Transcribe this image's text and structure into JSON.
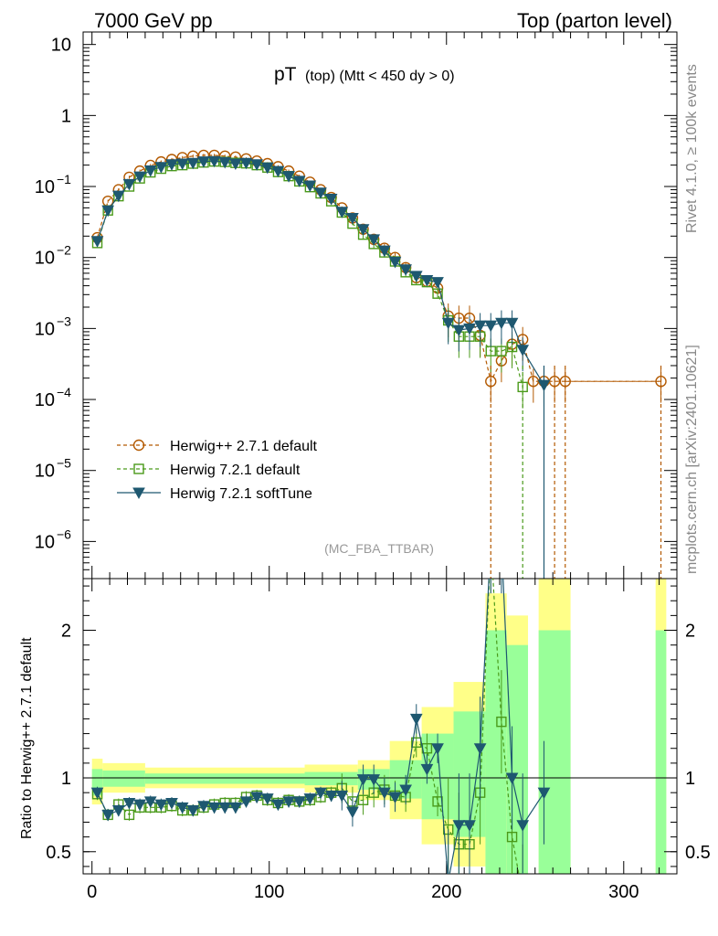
{
  "header": {
    "left": "7000 GeV pp",
    "right": "Top (parton level)"
  },
  "side_labels": {
    "rivet": "Rivet 4.1.0, ≥ 100k events",
    "mcplots": "mcplots.cern.ch [arXiv:2401.10621]"
  },
  "plot_title": {
    "main": "pT",
    "sub": "(top) (Mtt < 450 dy > 0)"
  },
  "analysis_label": "(MC_FBA_TTBAR)",
  "ratio_ylabel": "Ratio to Herwig++ 2.7.1 default",
  "colors": {
    "herwigpp": "#b35900",
    "herwig721": "#4a9a1a",
    "softtune": "#1e5870",
    "band_yellow": "#ffff88",
    "band_green": "#99ff99"
  },
  "chart_data": [
    {
      "type": "line",
      "name": "main-panel",
      "title": "pT (top) (Mtt < 450 dy > 0)",
      "yscale": "log",
      "ylim": [
        3e-07,
        15
      ],
      "xlim": [
        -5,
        330
      ],
      "yticks": [
        {
          "v": 1e-06,
          "base": "10",
          "exp": "−6"
        },
        {
          "v": 1e-05,
          "base": "10",
          "exp": "−5"
        },
        {
          "v": 0.0001,
          "base": "10",
          "exp": "−4"
        },
        {
          "v": 0.001,
          "base": "10",
          "exp": "−3"
        },
        {
          "v": 0.01,
          "base": "10",
          "exp": "−2"
        },
        {
          "v": 0.1,
          "base": "10",
          "exp": "−1"
        },
        {
          "v": 1,
          "base": "1",
          "exp": ""
        },
        {
          "v": 10,
          "base": "10",
          "exp": ""
        }
      ],
      "legend": [
        "Herwig++ 2.7.1 default",
        "Herwig 7.2.1 default",
        "Herwig 7.2.1 softTune"
      ],
      "legend_position": "bottom-left",
      "series": [
        {
          "name": "Herwig++ 2.7.1 default",
          "marker": "circle",
          "x": [
            3,
            9,
            15,
            21,
            27,
            33,
            39,
            45,
            51,
            57,
            63,
            69,
            75,
            81,
            87,
            93,
            99,
            105,
            111,
            117,
            123,
            129,
            135,
            141,
            147,
            153,
            159,
            165,
            171,
            177,
            183,
            189,
            195,
            201,
            207,
            213,
            219,
            225,
            231,
            237,
            243,
            249,
            255,
            261,
            267,
            321
          ],
          "y": [
            0.019,
            0.062,
            0.09,
            0.135,
            0.165,
            0.198,
            0.222,
            0.24,
            0.255,
            0.268,
            0.275,
            0.275,
            0.268,
            0.26,
            0.245,
            0.228,
            0.21,
            0.19,
            0.165,
            0.14,
            0.115,
            0.09,
            0.07,
            0.05,
            0.036,
            0.025,
            0.018,
            0.0135,
            0.01,
            0.0072,
            0.0052,
            0.0046,
            0.0037,
            0.0015,
            0.0014,
            0.0014,
            0.0008,
            0.00018,
            0.00035,
            0.0006,
            0.0007,
            0.00018,
            0.00018,
            0.00018,
            0.00018,
            0.00018
          ]
        },
        {
          "name": "Herwig 7.2.1 default",
          "marker": "square",
          "x": [
            3,
            9,
            15,
            21,
            27,
            33,
            39,
            45,
            51,
            57,
            63,
            69,
            75,
            81,
            87,
            93,
            99,
            105,
            111,
            117,
            123,
            129,
            135,
            141,
            147,
            153,
            159,
            165,
            171,
            177,
            183,
            189,
            195,
            201,
            207,
            213,
            219,
            225,
            231,
            237,
            243
          ],
          "y": [
            0.016,
            0.046,
            0.073,
            0.1,
            0.13,
            0.158,
            0.178,
            0.194,
            0.2,
            0.21,
            0.218,
            0.225,
            0.222,
            0.215,
            0.212,
            0.2,
            0.185,
            0.16,
            0.14,
            0.118,
            0.098,
            0.08,
            0.062,
            0.043,
            0.03,
            0.021,
            0.0155,
            0.0118,
            0.0088,
            0.0062,
            0.0048,
            0.0045,
            0.0031,
            0.0013,
            0.00077,
            0.00077,
            0.00077,
            0.00048,
            0.00048,
            0.00055,
            0.00015
          ]
        },
        {
          "name": "Herwig 7.2.1 softTune",
          "marker": "triangle-down",
          "x": [
            3,
            9,
            15,
            21,
            27,
            33,
            39,
            45,
            51,
            57,
            63,
            69,
            75,
            81,
            87,
            93,
            99,
            105,
            111,
            117,
            123,
            129,
            135,
            141,
            147,
            153,
            159,
            165,
            171,
            177,
            183,
            189,
            195,
            201,
            207,
            213,
            219,
            225,
            231,
            237,
            243,
            255
          ],
          "y": [
            0.017,
            0.046,
            0.074,
            0.108,
            0.138,
            0.168,
            0.188,
            0.205,
            0.21,
            0.215,
            0.225,
            0.228,
            0.22,
            0.21,
            0.215,
            0.205,
            0.185,
            0.165,
            0.14,
            0.12,
            0.103,
            0.082,
            0.067,
            0.044,
            0.036,
            0.025,
            0.018,
            0.0125,
            0.0087,
            0.0068,
            0.0055,
            0.0048,
            0.0045,
            0.0012,
            0.00095,
            0.001,
            0.0011,
            0.0011,
            0.0012,
            0.0012,
            0.0005,
            0.00016
          ]
        }
      ]
    },
    {
      "type": "line",
      "name": "ratio-panel",
      "ylabel": "Ratio to Herwig++ 2.7.1 default",
      "ylim": [
        0.35,
        2.35
      ],
      "xlim": [
        -5,
        330
      ],
      "xticks": [
        0,
        100,
        200,
        300
      ],
      "yticks": [
        0.5,
        1,
        2
      ],
      "bands": [
        {
          "x0": 0,
          "x1": 6,
          "y_lo": 0.82,
          "y_hi": 1.13,
          "g_lo": 0.88,
          "g_hi": 1.06
        },
        {
          "x0": 6,
          "x1": 30,
          "y_lo": 0.9,
          "y_hi": 1.1,
          "g_lo": 0.94,
          "g_hi": 1.05
        },
        {
          "x0": 30,
          "x1": 120,
          "y_lo": 0.93,
          "y_hi": 1.07,
          "g_lo": 0.96,
          "g_hi": 1.03
        },
        {
          "x0": 120,
          "x1": 150,
          "y_lo": 0.9,
          "y_hi": 1.09,
          "g_lo": 0.95,
          "g_hi": 1.04
        },
        {
          "x0": 150,
          "x1": 168,
          "y_lo": 0.85,
          "y_hi": 1.12,
          "g_lo": 0.92,
          "g_hi": 1.06
        },
        {
          "x0": 168,
          "x1": 186,
          "y_lo": 0.72,
          "y_hi": 1.25,
          "g_lo": 0.86,
          "g_hi": 1.12
        },
        {
          "x0": 186,
          "x1": 204,
          "y_lo": 0.55,
          "y_hi": 1.48,
          "g_lo": 0.72,
          "g_hi": 1.3
        },
        {
          "x0": 204,
          "x1": 222,
          "y_lo": 0.4,
          "y_hi": 1.65,
          "g_lo": 0.6,
          "g_hi": 1.45
        },
        {
          "x0": 222,
          "x1": 234,
          "y_lo": 0.35,
          "y_hi": 2.25,
          "g_lo": 0.35,
          "g_hi": 2.0
        },
        {
          "x0": 234,
          "x1": 246,
          "y_lo": 0.35,
          "y_hi": 2.1,
          "g_lo": 0.35,
          "g_hi": 1.9
        },
        {
          "x0": 252,
          "x1": 270,
          "y_lo": 0.35,
          "y_hi": 2.35,
          "g_lo": 0.35,
          "g_hi": 2.0
        },
        {
          "x0": 318,
          "x1": 324,
          "y_lo": 0.35,
          "y_hi": 2.35,
          "g_lo": 0.35,
          "g_hi": 2.0
        }
      ],
      "series": [
        {
          "name": "Herwig 7.2.1 default",
          "marker": "square",
          "x": [
            3,
            9,
            15,
            21,
            27,
            33,
            39,
            45,
            51,
            57,
            63,
            69,
            75,
            81,
            87,
            93,
            99,
            105,
            111,
            117,
            123,
            129,
            135,
            141,
            147,
            153,
            159,
            165,
            171,
            177,
            183,
            189,
            195,
            201,
            207,
            213,
            219,
            225,
            231,
            237,
            243
          ],
          "y": [
            0.89,
            0.75,
            0.82,
            0.75,
            0.8,
            0.8,
            0.8,
            0.81,
            0.78,
            0.78,
            0.8,
            0.82,
            0.83,
            0.83,
            0.87,
            0.88,
            0.85,
            0.83,
            0.85,
            0.84,
            0.85,
            0.87,
            0.9,
            0.93,
            0.84,
            0.85,
            0.9,
            0.92,
            0.88,
            0.87,
            1.24,
            1.2,
            0.84,
            0.65,
            0.55,
            0.55,
            0.9,
            2.6,
            1.38,
            0.6,
            0.2
          ]
        },
        {
          "name": "Herwig 7.2.1 softTune",
          "marker": "triangle-down",
          "x": [
            3,
            9,
            15,
            21,
            27,
            33,
            39,
            45,
            51,
            57,
            63,
            69,
            75,
            81,
            87,
            93,
            99,
            105,
            111,
            117,
            123,
            129,
            135,
            141,
            147,
            153,
            159,
            165,
            171,
            177,
            183,
            189,
            195,
            201,
            207,
            213,
            219,
            225,
            231,
            237,
            243,
            255
          ],
          "y": [
            0.9,
            0.75,
            0.78,
            0.83,
            0.82,
            0.84,
            0.82,
            0.83,
            0.8,
            0.78,
            0.81,
            0.8,
            0.8,
            0.8,
            0.84,
            0.87,
            0.86,
            0.82,
            0.84,
            0.84,
            0.86,
            0.9,
            0.88,
            0.88,
            0.77,
            0.99,
            0.99,
            0.9,
            0.87,
            0.92,
            1.4,
            1.06,
            1.2,
            0.3,
            0.68,
            0.68,
            1.2,
            2.6,
            2.6,
            1.0,
            0.68,
            0.9
          ]
        }
      ]
    }
  ]
}
